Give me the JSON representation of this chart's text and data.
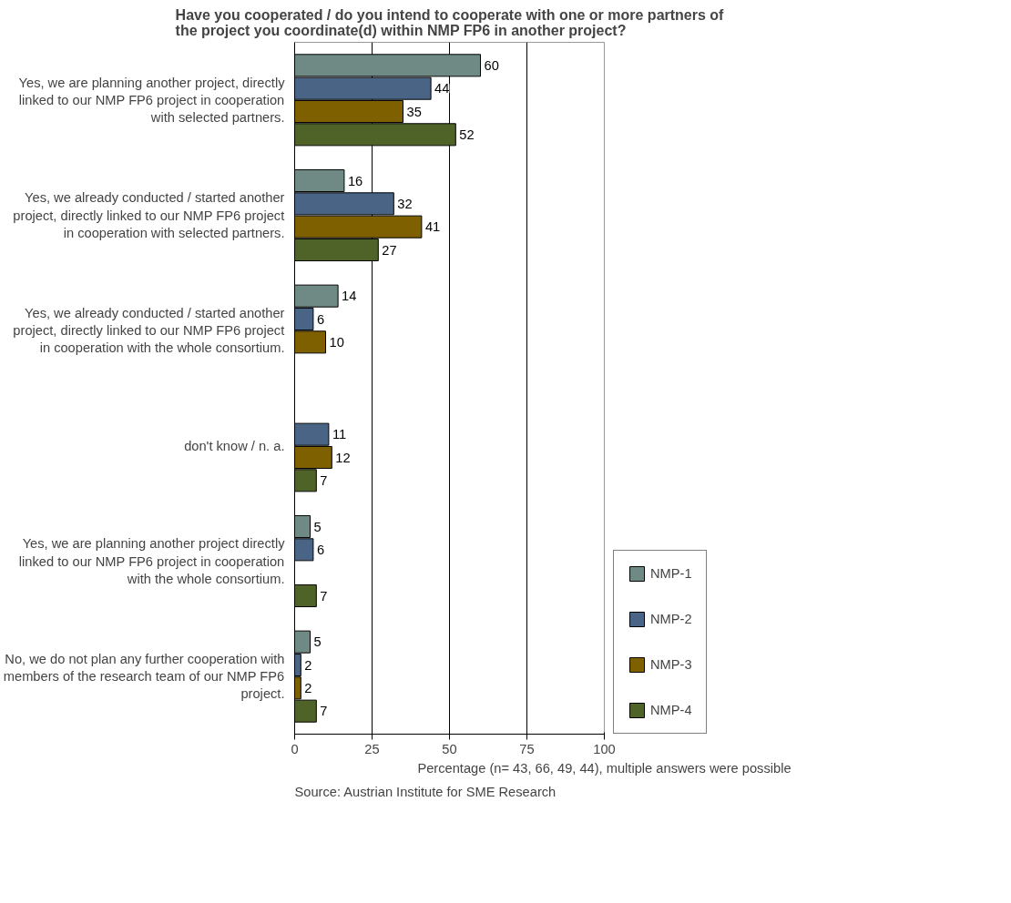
{
  "chart_data": {
    "type": "bar",
    "orientation": "horizontal",
    "title": "Have you cooperated / do you intend to cooperate with one or more partners of the project you coordinate(d) within NMP FP6 in another project?",
    "categories": [
      "Yes, we are planning another project, directly linked to our NMP FP6 project in cooperation with selected partners.",
      "Yes, we already conducted / started another project, directly linked to our NMP FP6 project in cooperation with selected partners.",
      "Yes, we already conducted / started another project, directly linked to our NMP FP6 project in cooperation with the whole consortium.",
      "don't know / n. a.",
      "Yes, we are planning another project directly linked to our NMP FP6 project in cooperation with the whole consortium.",
      "No, we do not plan any further cooperation with members of the research team of our NMP FP6 project."
    ],
    "series": [
      {
        "name": "NMP-1",
        "color": "#6f8a84",
        "values": [
          60,
          16,
          14,
          null,
          5,
          5
        ]
      },
      {
        "name": "NMP-2",
        "color": "#4a6485",
        "values": [
          44,
          32,
          6,
          11,
          6,
          2
        ]
      },
      {
        "name": "NMP-3",
        "color": "#7f6000",
        "values": [
          35,
          41,
          10,
          12,
          null,
          2
        ]
      },
      {
        "name": "NMP-4",
        "color": "#4f6228",
        "values": [
          52,
          27,
          null,
          7,
          7,
          7
        ]
      }
    ],
    "xlim": [
      0,
      100
    ],
    "xticks": [
      0,
      25,
      50,
      75,
      100
    ],
    "grid": "x",
    "legend": "bottom right",
    "data_labels": true,
    "xlabel": "Percentage (n= 43, 66, 49, 44), multiple answers were possible",
    "annotations": [
      "Source: Austrian Institute for SME Research"
    ]
  }
}
